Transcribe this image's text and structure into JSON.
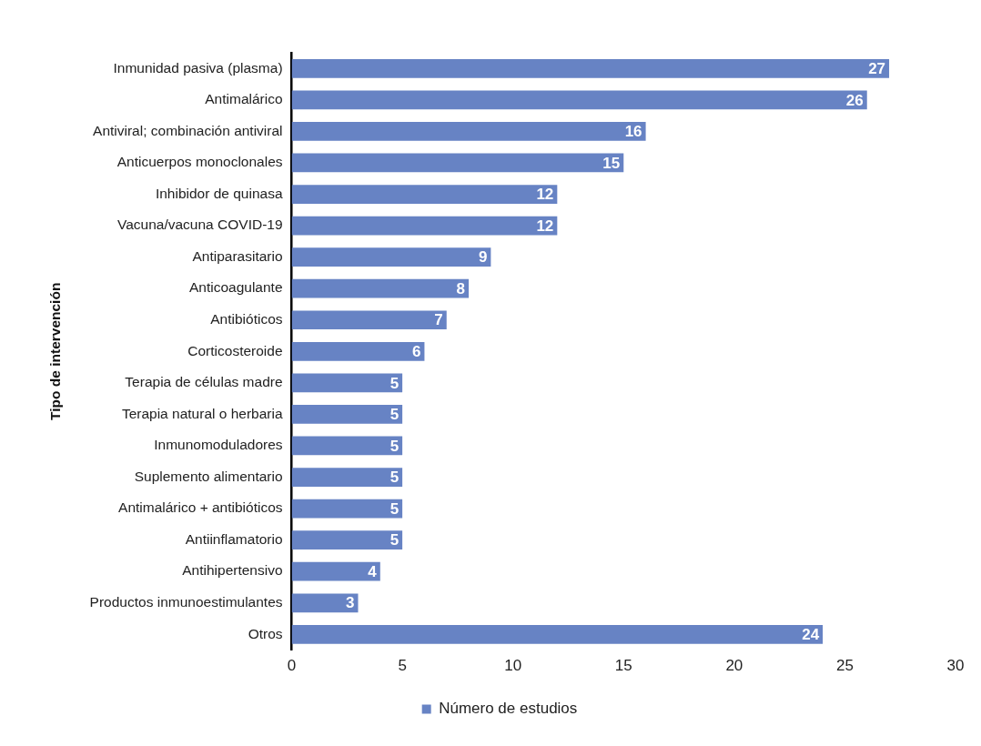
{
  "chart_data": {
    "type": "bar",
    "orientation": "horizontal",
    "ylabel": "Tipo de intervención",
    "categories": [
      "Inmunidad pasiva (plasma)",
      "Antimalárico",
      "Antiviral; combinación antiviral",
      "Anticuerpos monoclonales",
      "Inhibidor de quinasa",
      "Vacuna/vacuna COVID-19",
      "Antiparasitario",
      "Anticoagulante",
      "Antibióticos",
      "Corticosteroide",
      "Terapia de células madre",
      "Terapia natural o herbaria",
      "Inmunomoduladores",
      "Suplemento alimentario",
      "Antimalárico + antibióticos",
      "Antiinflamatorio",
      "Antihipertensivo",
      "Productos inmunoestimulantes",
      "Otros"
    ],
    "series": [
      {
        "name": "Número de estudios",
        "color": "#6783c4",
        "values": [
          27,
          26,
          16,
          15,
          12,
          12,
          9,
          8,
          7,
          6,
          5,
          5,
          5,
          5,
          5,
          5,
          4,
          3,
          24
        ]
      }
    ],
    "xlim": [
      0,
      30
    ],
    "xticks": [
      0,
      5,
      10,
      15,
      20,
      25,
      30
    ],
    "grid": false,
    "legend": "bottom",
    "data_labels": true
  }
}
